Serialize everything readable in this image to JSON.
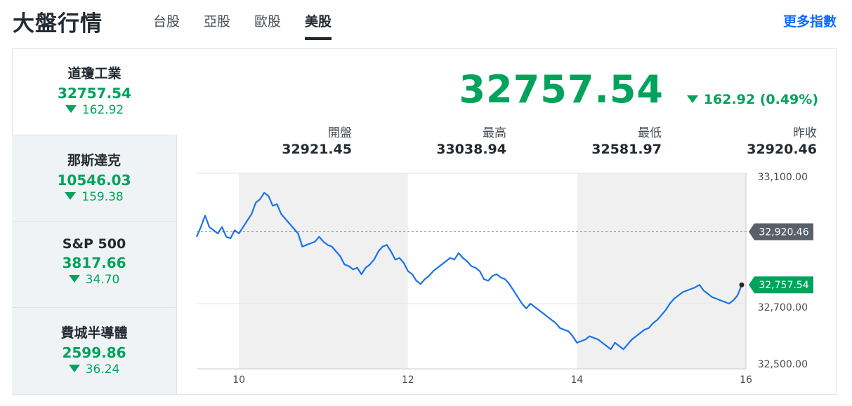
{
  "header": {
    "title": "大盤行情",
    "tabs": [
      {
        "label": "台股",
        "active": false
      },
      {
        "label": "亞股",
        "active": false
      },
      {
        "label": "歐股",
        "active": false
      },
      {
        "label": "美股",
        "active": true
      }
    ],
    "more_link": "更多指數"
  },
  "colors": {
    "down": "#00a35c",
    "line": "#1a73e8",
    "prev_close_badge": "#596069",
    "link": "#0f69ff"
  },
  "sidebar": {
    "items": [
      {
        "name": "道瓊工業",
        "price": "32757.54",
        "change": "162.92",
        "direction": "down",
        "selected": true
      },
      {
        "name": "那斯達克",
        "price": "10546.03",
        "change": "159.38",
        "direction": "down",
        "selected": false
      },
      {
        "name": "S&P 500",
        "price": "3817.66",
        "change": "34.70",
        "direction": "down",
        "selected": false
      },
      {
        "name": "費城半導體",
        "price": "2599.86",
        "change": "36.24",
        "direction": "down",
        "selected": false
      }
    ]
  },
  "main": {
    "price": "32757.54",
    "change": "162.92 (0.49%)",
    "direction": "down",
    "stats": [
      {
        "label": "開盤",
        "value": "32921.45"
      },
      {
        "label": "最高",
        "value": "33038.94"
      },
      {
        "label": "最低",
        "value": "32581.97"
      },
      {
        "label": "昨收",
        "value": "32920.46"
      }
    ]
  },
  "chart_data": {
    "type": "line",
    "x_ticks": [
      "10",
      "12",
      "14",
      "16"
    ],
    "y_ticks": [
      "33,100.00",
      "32,700.00",
      "32,500.00"
    ],
    "ylim": [
      32500,
      33100
    ],
    "xlim": [
      9.5,
      16
    ],
    "prev_close": 32920.46,
    "prev_close_label": "32,920.46",
    "last_label": "32,757.54",
    "shaded_bands": [
      [
        10,
        12
      ],
      [
        14,
        16
      ]
    ],
    "series": [
      {
        "x": [
          9.5,
          9.55,
          9.6,
          9.65,
          9.7,
          9.75,
          9.8,
          9.85,
          9.9,
          9.95,
          10.0,
          10.05,
          10.1,
          10.15,
          10.2,
          10.25,
          10.3,
          10.35,
          10.4,
          10.45,
          10.5,
          10.55,
          10.6,
          10.65,
          10.7,
          10.75,
          10.8,
          10.85,
          10.9,
          10.95,
          11.0,
          11.05,
          11.1,
          11.15,
          11.2,
          11.25,
          11.3,
          11.35,
          11.4,
          11.45,
          11.5,
          11.55,
          11.6,
          11.65,
          11.7,
          11.75,
          11.8,
          11.85,
          11.9,
          11.95,
          12.0,
          12.05,
          12.1,
          12.15,
          12.2,
          12.25,
          12.3,
          12.35,
          12.4,
          12.45,
          12.5,
          12.55,
          12.6,
          12.65,
          12.7,
          12.75,
          12.8,
          12.85,
          12.9,
          12.95,
          13.0,
          13.05,
          13.1,
          13.15,
          13.2,
          13.25,
          13.3,
          13.35,
          13.4,
          13.45,
          13.5,
          13.55,
          13.6,
          13.65,
          13.7,
          13.75,
          13.8,
          13.85,
          13.9,
          13.95,
          14.0,
          14.05,
          14.1,
          14.15,
          14.2,
          14.25,
          14.3,
          14.35,
          14.4,
          14.45,
          14.5,
          14.55,
          14.6,
          14.65,
          14.7,
          14.75,
          14.8,
          14.85,
          14.9,
          14.95,
          15.0,
          15.05,
          15.1,
          15.15,
          15.2,
          15.25,
          15.3,
          15.35,
          15.4,
          15.45,
          15.5,
          15.55,
          15.6,
          15.65,
          15.7,
          15.75,
          15.8,
          15.85,
          15.9,
          15.95
        ],
        "y": [
          32905,
          32935,
          32970,
          32935,
          32925,
          32915,
          32935,
          32905,
          32900,
          32925,
          32915,
          32935,
          32955,
          32975,
          33010,
          33020,
          33040,
          33030,
          33000,
          33005,
          32975,
          32960,
          32945,
          32930,
          32915,
          32875,
          32880,
          32885,
          32890,
          32905,
          32890,
          32880,
          32875,
          32860,
          32845,
          32820,
          32815,
          32805,
          32810,
          32790,
          32810,
          32820,
          32835,
          32860,
          32875,
          32880,
          32860,
          32835,
          32840,
          32825,
          32800,
          32790,
          32770,
          32760,
          32775,
          32785,
          32800,
          32810,
          32820,
          32830,
          32840,
          32835,
          32855,
          32840,
          32830,
          32815,
          32810,
          32800,
          32775,
          32770,
          32785,
          32790,
          32780,
          32775,
          32760,
          32740,
          32720,
          32700,
          32685,
          32700,
          32690,
          32680,
          32670,
          32660,
          32650,
          32640,
          32625,
          32620,
          32615,
          32600,
          32580,
          32585,
          32590,
          32600,
          32595,
          32590,
          32580,
          32570,
          32560,
          32580,
          32570,
          32560,
          32575,
          32590,
          32600,
          32610,
          32620,
          32625,
          32640,
          32650,
          32665,
          32680,
          32700,
          32715,
          32725,
          32735,
          32740,
          32745,
          32750,
          32757.54,
          32740,
          32730,
          32720,
          32715,
          32710,
          32705,
          32700,
          32710,
          32725,
          32757.54
        ],
        "color": "#1a73e8"
      }
    ]
  }
}
